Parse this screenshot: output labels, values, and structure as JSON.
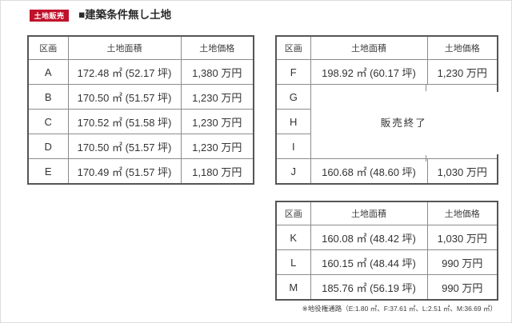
{
  "header": {
    "badge": "土地販売",
    "title": "■建築条件無し土地"
  },
  "tables": [
    {
      "headers": [
        "区画",
        "土地面積",
        "土地価格"
      ],
      "rows": [
        {
          "plot": "A",
          "area": "172.48 ㎡ (52.17 坪)",
          "price": "1,380 万円"
        },
        {
          "plot": "B",
          "area": "170.50 ㎡ (51.57 坪)",
          "price": "1,230 万円"
        },
        {
          "plot": "C",
          "area": "170.52 ㎡ (51.58 坪)",
          "price": "1,230 万円"
        },
        {
          "plot": "D",
          "area": "170.50 ㎡ (51.57 坪)",
          "price": "1,230 万円"
        },
        {
          "plot": "E",
          "area": "170.49 ㎡ (51.57 坪)",
          "price": "1,180 万円"
        }
      ]
    },
    {
      "headers": [
        "区画",
        "土地面積",
        "土地価格"
      ],
      "rows": [
        {
          "plot": "F",
          "area": "198.92 ㎡ (60.17 坪)",
          "price": "1,230 万円"
        },
        {
          "plot": "G",
          "soldout": "販売終了",
          "rowspan": 3
        },
        {
          "plot": "H"
        },
        {
          "plot": "I"
        },
        {
          "plot": "J",
          "area": "160.68 ㎡ (48.60 坪)",
          "price": "1,030 万円"
        }
      ]
    },
    {
      "headers": [
        "区画",
        "土地面積",
        "土地価格"
      ],
      "rows": [
        {
          "plot": "K",
          "area": "160.08 ㎡ (48.42 坪)",
          "price": "1,030 万円"
        },
        {
          "plot": "L",
          "area": "160.15 ㎡ (48.44 坪)",
          "price": "990 万円"
        },
        {
          "plot": "M",
          "area": "185.76 ㎡ (56.19 坪)",
          "price": "990 万円"
        }
      ]
    }
  ],
  "footnote": "※地役権通路（E:1.80 ㎡、F:37.61 ㎡、L:2.51 ㎡、M:36.69 ㎡）",
  "colors": {
    "badge_red": "#c0112b",
    "table_border_outer": "#555555",
    "table_border_inner": "#8c8c8c"
  }
}
